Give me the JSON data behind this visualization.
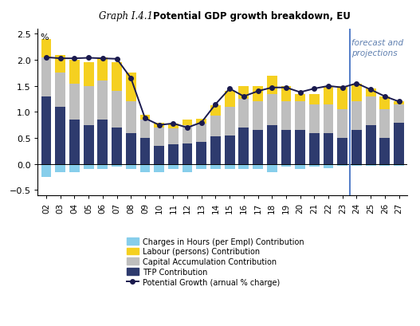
{
  "title_italic": "Graph I.4.1:",
  "title_bold": " Potential GDP growth breakdown, EU",
  "ylabel": "%",
  "categories": [
    "02",
    "03",
    "04",
    "05",
    "06",
    "07",
    "08",
    "09",
    "10",
    "11",
    "12",
    "13",
    "14",
    "15",
    "16",
    "17",
    "18",
    "19",
    "20",
    "21",
    "22",
    "23",
    "24",
    "25",
    "26",
    "27"
  ],
  "tfp": [
    1.3,
    1.1,
    0.85,
    0.75,
    0.85,
    0.7,
    0.6,
    0.5,
    0.35,
    0.38,
    0.4,
    0.42,
    0.53,
    0.55,
    0.7,
    0.65,
    0.75,
    0.65,
    0.65,
    0.6,
    0.6,
    0.5,
    0.65,
    0.75,
    0.5,
    0.8
  ],
  "capital": [
    0.75,
    0.65,
    0.7,
    0.75,
    0.75,
    0.7,
    0.6,
    0.35,
    0.35,
    0.3,
    0.35,
    0.35,
    0.4,
    0.55,
    0.55,
    0.55,
    0.6,
    0.55,
    0.55,
    0.55,
    0.55,
    0.55,
    0.55,
    0.55,
    0.55,
    0.35
  ],
  "labour": [
    0.35,
    0.35,
    0.45,
    0.45,
    0.45,
    0.55,
    0.55,
    0.1,
    0.1,
    0.1,
    0.1,
    0.1,
    0.2,
    0.3,
    0.25,
    0.3,
    0.35,
    0.3,
    0.15,
    0.2,
    0.35,
    0.45,
    0.35,
    0.15,
    0.25,
    0.05
  ],
  "hours": [
    -0.25,
    -0.15,
    -0.15,
    -0.1,
    -0.1,
    -0.05,
    -0.1,
    -0.15,
    -0.15,
    -0.1,
    -0.15,
    -0.1,
    -0.1,
    -0.1,
    -0.1,
    -0.1,
    -0.15,
    -0.05,
    -0.1,
    -0.05,
    -0.08,
    -0.03,
    -0.03,
    -0.03,
    -0.03,
    -0.03
  ],
  "potential_growth": [
    2.05,
    2.03,
    2.03,
    2.04,
    2.03,
    2.02,
    1.65,
    0.88,
    0.75,
    0.78,
    0.7,
    0.8,
    1.15,
    1.45,
    1.3,
    1.4,
    1.47,
    1.47,
    1.38,
    1.45,
    1.5,
    1.47,
    1.55,
    1.43,
    1.3,
    1.2
  ],
  "forecast_bar_index": 21,
  "color_tfp": "#2E3B6E",
  "color_capital": "#BEBEBE",
  "color_labour": "#F5D020",
  "color_hours": "#87CEEB",
  "color_line": "#1a1a4e",
  "color_vline": "#4472C4",
  "color_forecast_text": "#6080B0",
  "background_color": "#FFFFFF",
  "legend_labels": [
    "Charges in Hours (per Empl) Contribution",
    "Labour (persons) Contribution",
    "Capital Accumulation Contribution",
    "TFP Contribution",
    "Potential Growth (arnual % charge)"
  ],
  "ylim": [
    -0.6,
    2.6
  ],
  "yticks": [
    -0.5,
    0.0,
    0.5,
    1.0,
    1.5,
    2.0,
    2.5
  ]
}
